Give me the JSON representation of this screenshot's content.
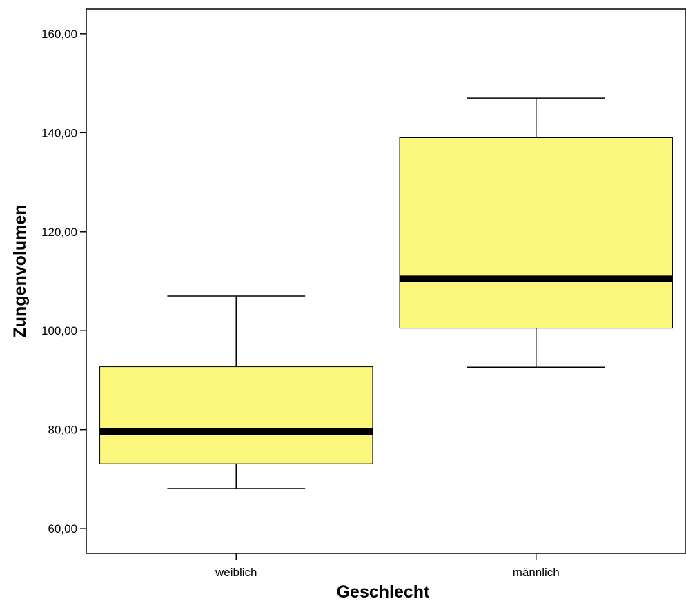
{
  "chart_data": {
    "type": "boxplot",
    "xlabel": "Geschlecht",
    "ylabel": "Zungenvolumen",
    "ylim": [
      55,
      165
    ],
    "yticks": [
      {
        "value": 60,
        "label": "60,00"
      },
      {
        "value": 80,
        "label": "80,00"
      },
      {
        "value": 100,
        "label": "100,00"
      },
      {
        "value": 120,
        "label": "120,00"
      },
      {
        "value": 140,
        "label": "140,00"
      },
      {
        "value": 160,
        "label": "160,00"
      }
    ],
    "categories": [
      "weiblich",
      "männlich"
    ],
    "boxes": [
      {
        "category": "weiblich",
        "min": 68.1,
        "q1": 73.1,
        "median": 79.6,
        "q3": 92.7,
        "max": 107.0
      },
      {
        "category": "männlich",
        "min": 92.6,
        "q1": 100.5,
        "median": 110.5,
        "q3": 139.0,
        "max": 147.0
      }
    ],
    "grid": false,
    "colors": {
      "box_fill": "#fbf77c",
      "box_stroke": "#000000",
      "median": "#000000",
      "axis": "#000000",
      "background": "#ffffff"
    }
  }
}
